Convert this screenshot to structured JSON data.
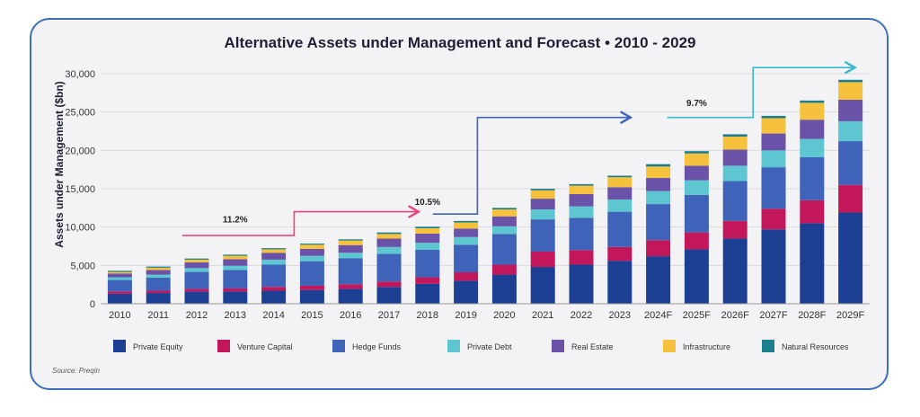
{
  "chart_data": {
    "type": "bar",
    "stacked": true,
    "title": "Alternative Assets under Management and Forecast  •  2010 - 2029",
    "xlabel": "",
    "ylabel": "Assets under Management ($bn)",
    "ylim": [
      0,
      30000
    ],
    "yticks": [
      0,
      5000,
      10000,
      15000,
      20000,
      25000,
      30000
    ],
    "ytick_labels": [
      "0",
      "5,000",
      "10,000",
      "15,000",
      "20,000",
      "25,000",
      "30,000"
    ],
    "grid": true,
    "legend_position": "bottom",
    "categories": [
      "2010",
      "2011",
      "2012",
      "2013",
      "2014",
      "2015",
      "2016",
      "2017",
      "2018",
      "2019",
      "2020",
      "2021",
      "2022",
      "2023",
      "2024F",
      "2025F",
      "2026F",
      "2027F",
      "2028F",
      "2029F"
    ],
    "series": [
      {
        "name": "Private Equity",
        "color": "#1c3f94",
        "values": [
          1300,
          1400,
          1600,
          1600,
          1700,
          1800,
          1950,
          2200,
          2600,
          3000,
          3800,
          4800,
          5100,
          5600,
          6200,
          7100,
          8500,
          9700,
          10500,
          11900
        ]
      },
      {
        "name": "Venture Capital",
        "color": "#c2185b",
        "values": [
          300,
          300,
          350,
          400,
          500,
          550,
          600,
          700,
          850,
          1100,
          1300,
          2000,
          1900,
          1800,
          2100,
          2200,
          2300,
          2700,
          3000,
          3600
        ]
      },
      {
        "name": "Hedge Funds",
        "color": "#3e63b8",
        "values": [
          1500,
          1700,
          2200,
          2400,
          2900,
          3200,
          3400,
          3600,
          3600,
          3600,
          4000,
          4200,
          4200,
          4600,
          4700,
          4900,
          5200,
          5400,
          5600,
          5700
        ]
      },
      {
        "name": "Private Debt",
        "color": "#5ec6d0",
        "values": [
          350,
          400,
          500,
          550,
          650,
          700,
          700,
          900,
          900,
          1000,
          1000,
          1300,
          1500,
          1600,
          1700,
          1900,
          2000,
          2200,
          2400,
          2600
        ]
      },
      {
        "name": "Real Estate",
        "color": "#6a52a8",
        "values": [
          500,
          600,
          750,
          850,
          900,
          900,
          1000,
          1100,
          1200,
          1100,
          1300,
          1400,
          1600,
          1600,
          1700,
          1900,
          2100,
          2200,
          2500,
          2800
        ]
      },
      {
        "name": "Infrastructure",
        "color": "#f6c23e",
        "values": [
          200,
          300,
          350,
          450,
          450,
          550,
          600,
          600,
          700,
          800,
          900,
          1100,
          1100,
          1300,
          1500,
          1600,
          1700,
          2000,
          2200,
          2300
        ]
      },
      {
        "name": "Natural Resources",
        "color": "#1b7e8c",
        "values": [
          150,
          150,
          150,
          150,
          150,
          150,
          150,
          200,
          200,
          200,
          200,
          200,
          200,
          200,
          300,
          300,
          300,
          300,
          300,
          300
        ]
      }
    ],
    "annotations": [
      {
        "text": "11.2%",
        "color": "#e8467c",
        "from": "2012",
        "to": "2018",
        "label_at": "2013",
        "label_value": 10600
      },
      {
        "text": "10.5%",
        "color": "#3e63b8",
        "from": "2018",
        "to": "2023",
        "label_at": "2018",
        "label_value": 12900
      },
      {
        "text": "9.7%",
        "color": "#3ab8cc",
        "from": "2023",
        "to": "2029F",
        "label_at": "2025F",
        "label_value": 25800
      }
    ],
    "source": "Source: Preqin"
  }
}
